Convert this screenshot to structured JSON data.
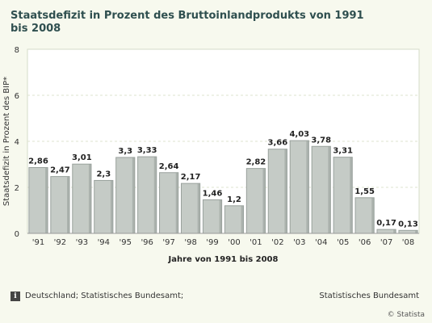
{
  "colors": {
    "bar": "#c5cbc6",
    "bar_edge": "#9aa29d",
    "plot_bg": "#ffffff",
    "grid": "#dde3cf",
    "title": "#2f4f4f"
  },
  "chart_data": {
    "type": "bar",
    "title": "Staatsdefizit in Prozent des Bruttoinlandprodukts von 1991 bis 2008",
    "xlabel": "Jahre von 1991 bis 2008",
    "ylabel": "Staatsdefizit in Prozent des BIP*",
    "ylim": [
      0,
      8
    ],
    "yticks": [
      0,
      2,
      4,
      6,
      8
    ],
    "grid": true,
    "categories": [
      "'91",
      "'92",
      "'93",
      "'94",
      "'95",
      "'96",
      "'97",
      "'98",
      "'99",
      "'00",
      "'01",
      "'02",
      "'03",
      "'04",
      "'05",
      "'06",
      "'07",
      "'08"
    ],
    "values": [
      2.86,
      2.47,
      3.01,
      2.3,
      3.3,
      3.33,
      2.64,
      2.17,
      1.46,
      1.2,
      2.82,
      3.66,
      4.03,
      3.78,
      3.31,
      1.55,
      0.17,
      0.13
    ],
    "value_labels": [
      "2,86",
      "2,47",
      "3,01",
      "2,3",
      "3,3",
      "3,33",
      "2,64",
      "2,17",
      "1,46",
      "1,2",
      "2,82",
      "3,66",
      "4,03",
      "3,78",
      "3,31",
      "1,55",
      "0,17",
      "0,13"
    ]
  },
  "footer": {
    "info_icon": "i",
    "source": "Deutschland; Statistisches Bundesamt;",
    "publisher": "Statistisches Bundesamt",
    "copyright": "© Statista"
  }
}
